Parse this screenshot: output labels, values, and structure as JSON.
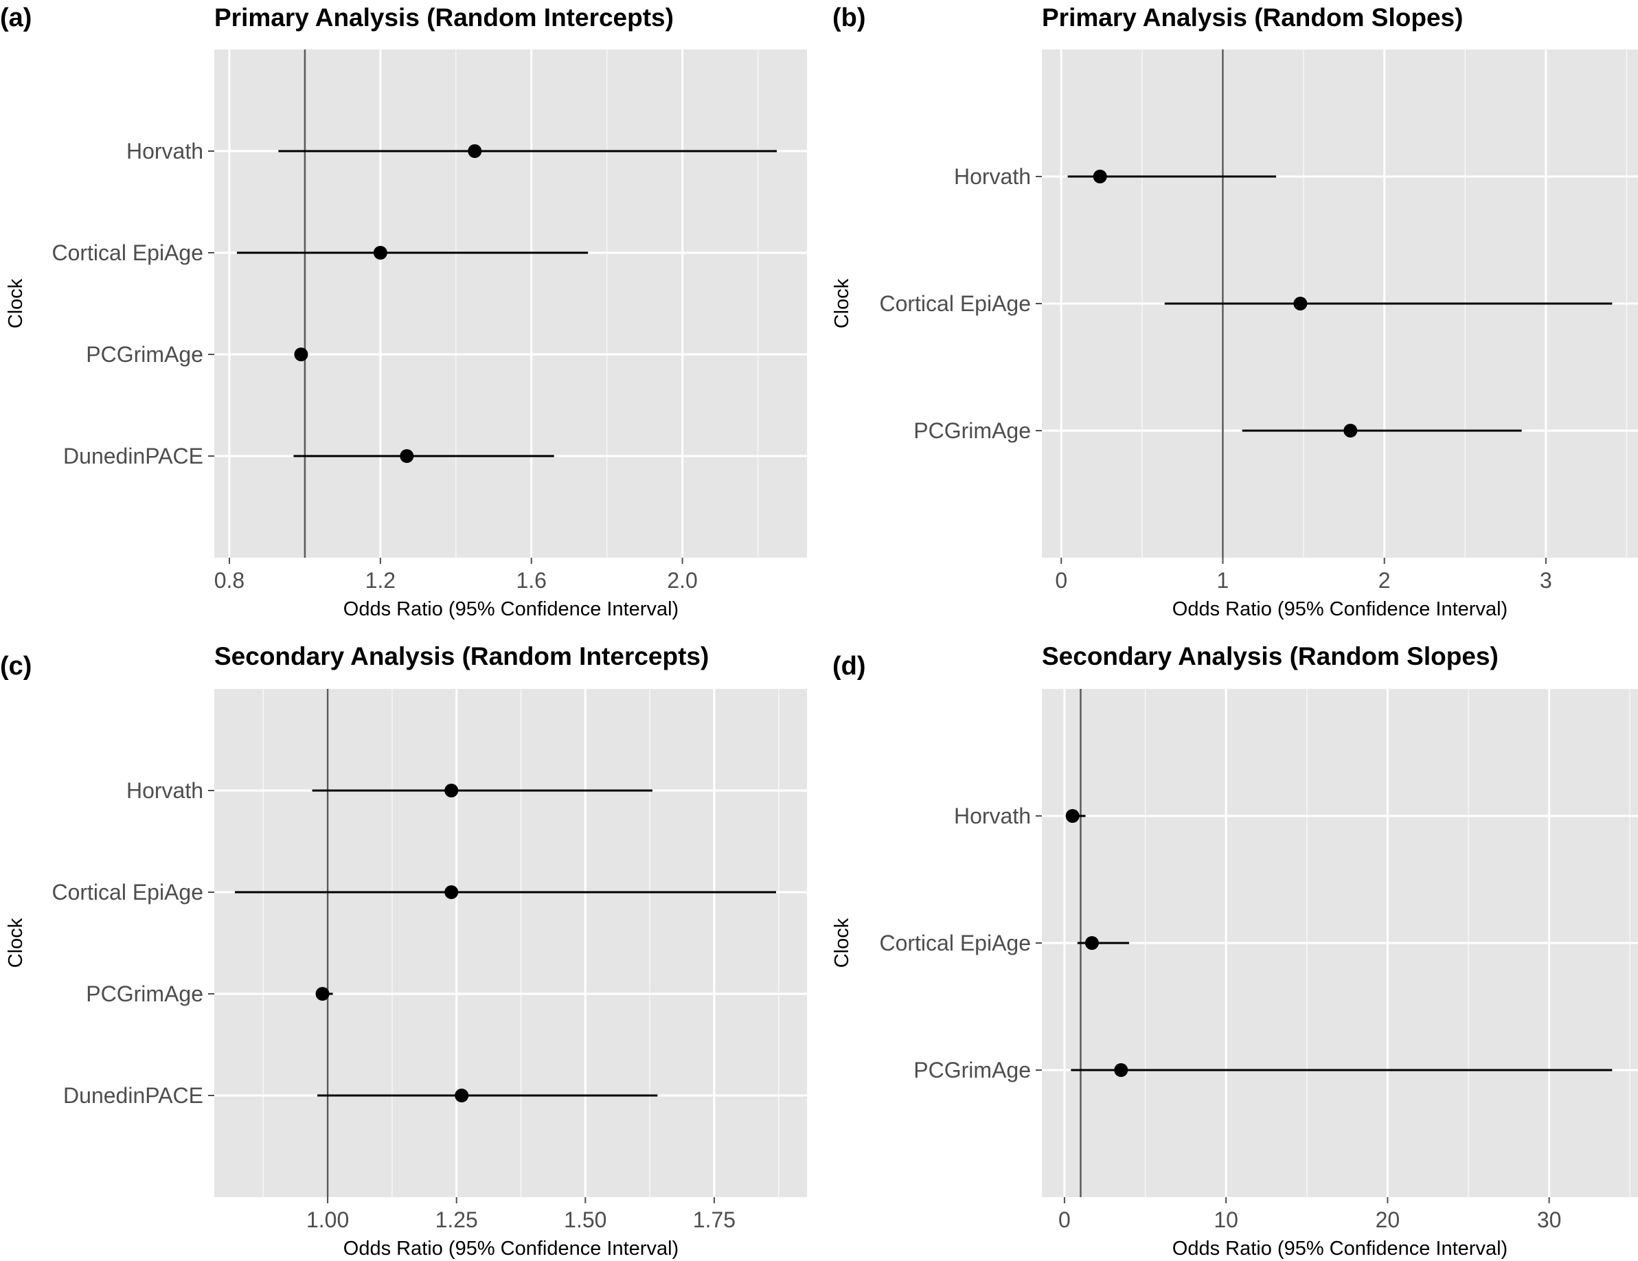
{
  "colors": {
    "panel_background": "#e5e5e5",
    "grid_line": "#ffffff",
    "reference_line": "#595959",
    "point_and_interval": "#000000",
    "tick_label": "#4d4d4d"
  },
  "chart_data": [
    {
      "panel_label": "(a)",
      "type": "forest",
      "title": "Primary Analysis (Random Intercepts)",
      "xlabel": "Odds Ratio (95% Confidence Interval)",
      "ylabel": "Clock",
      "xlim": [
        0.76,
        2.33
      ],
      "xticks": [
        0.8,
        1.2,
        1.6,
        2.0
      ],
      "xtick_labels": [
        "0.8",
        "1.2",
        "1.6",
        "2.0"
      ],
      "reference_value": 1,
      "categories": [
        "Horvath",
        "Cortical EpiAge",
        "PCGrimAge",
        "DunedinPACE"
      ],
      "estimates": [
        1.45,
        1.2,
        0.99,
        1.27
      ],
      "lower": [
        0.93,
        0.82,
        0.99,
        0.97
      ],
      "upper": [
        2.25,
        1.75,
        0.99,
        1.66
      ]
    },
    {
      "panel_label": "(b)",
      "type": "forest",
      "title": "Primary Analysis (Random Slopes)",
      "xlabel": "Odds Ratio (95% Confidence Interval)",
      "ylabel": "Clock",
      "xlim": [
        -0.12,
        3.57
      ],
      "xticks": [
        0,
        1,
        2,
        3
      ],
      "xtick_labels": [
        "0",
        "1",
        "2",
        "3"
      ],
      "reference_value": 1,
      "categories": [
        "Horvath",
        "Cortical EpiAge",
        "PCGrimAge"
      ],
      "estimates": [
        0.24,
        1.48,
        1.79
      ],
      "lower": [
        0.04,
        0.64,
        1.12
      ],
      "upper": [
        1.33,
        3.41,
        2.85
      ]
    },
    {
      "panel_label": "(c)",
      "type": "forest",
      "title": "Secondary Analysis (Random Intercepts)",
      "xlabel": "Odds Ratio (95% Confidence Interval)",
      "ylabel": "Clock",
      "xlim": [
        0.78,
        1.93
      ],
      "xticks": [
        1.0,
        1.25,
        1.5,
        1.75
      ],
      "xtick_labels": [
        "1.00",
        "1.25",
        "1.50",
        "1.75"
      ],
      "reference_value": 1,
      "categories": [
        "Horvath",
        "Cortical EpiAge",
        "PCGrimAge",
        "DunedinPACE"
      ],
      "estimates": [
        1.24,
        1.24,
        0.99,
        1.26
      ],
      "lower": [
        0.97,
        0.82,
        0.98,
        0.98
      ],
      "upper": [
        1.63,
        1.87,
        1.01,
        1.64
      ]
    },
    {
      "panel_label": "(d)",
      "type": "forest",
      "title": "Secondary Analysis (Random Slopes)",
      "xlabel": "Odds Ratio (95% Confidence Interval)",
      "ylabel": "Clock",
      "xlim": [
        -1.4,
        35.5
      ],
      "xticks": [
        0,
        10,
        20,
        30
      ],
      "xtick_labels": [
        "0",
        "10",
        "20",
        "30"
      ],
      "reference_value": 1,
      "categories": [
        "Horvath",
        "Cortical EpiAge",
        "PCGrimAge"
      ],
      "estimates": [
        0.5,
        1.7,
        3.5
      ],
      "lower": [
        0.2,
        0.8,
        0.4
      ],
      "upper": [
        1.3,
        4.0,
        33.9
      ]
    }
  ]
}
